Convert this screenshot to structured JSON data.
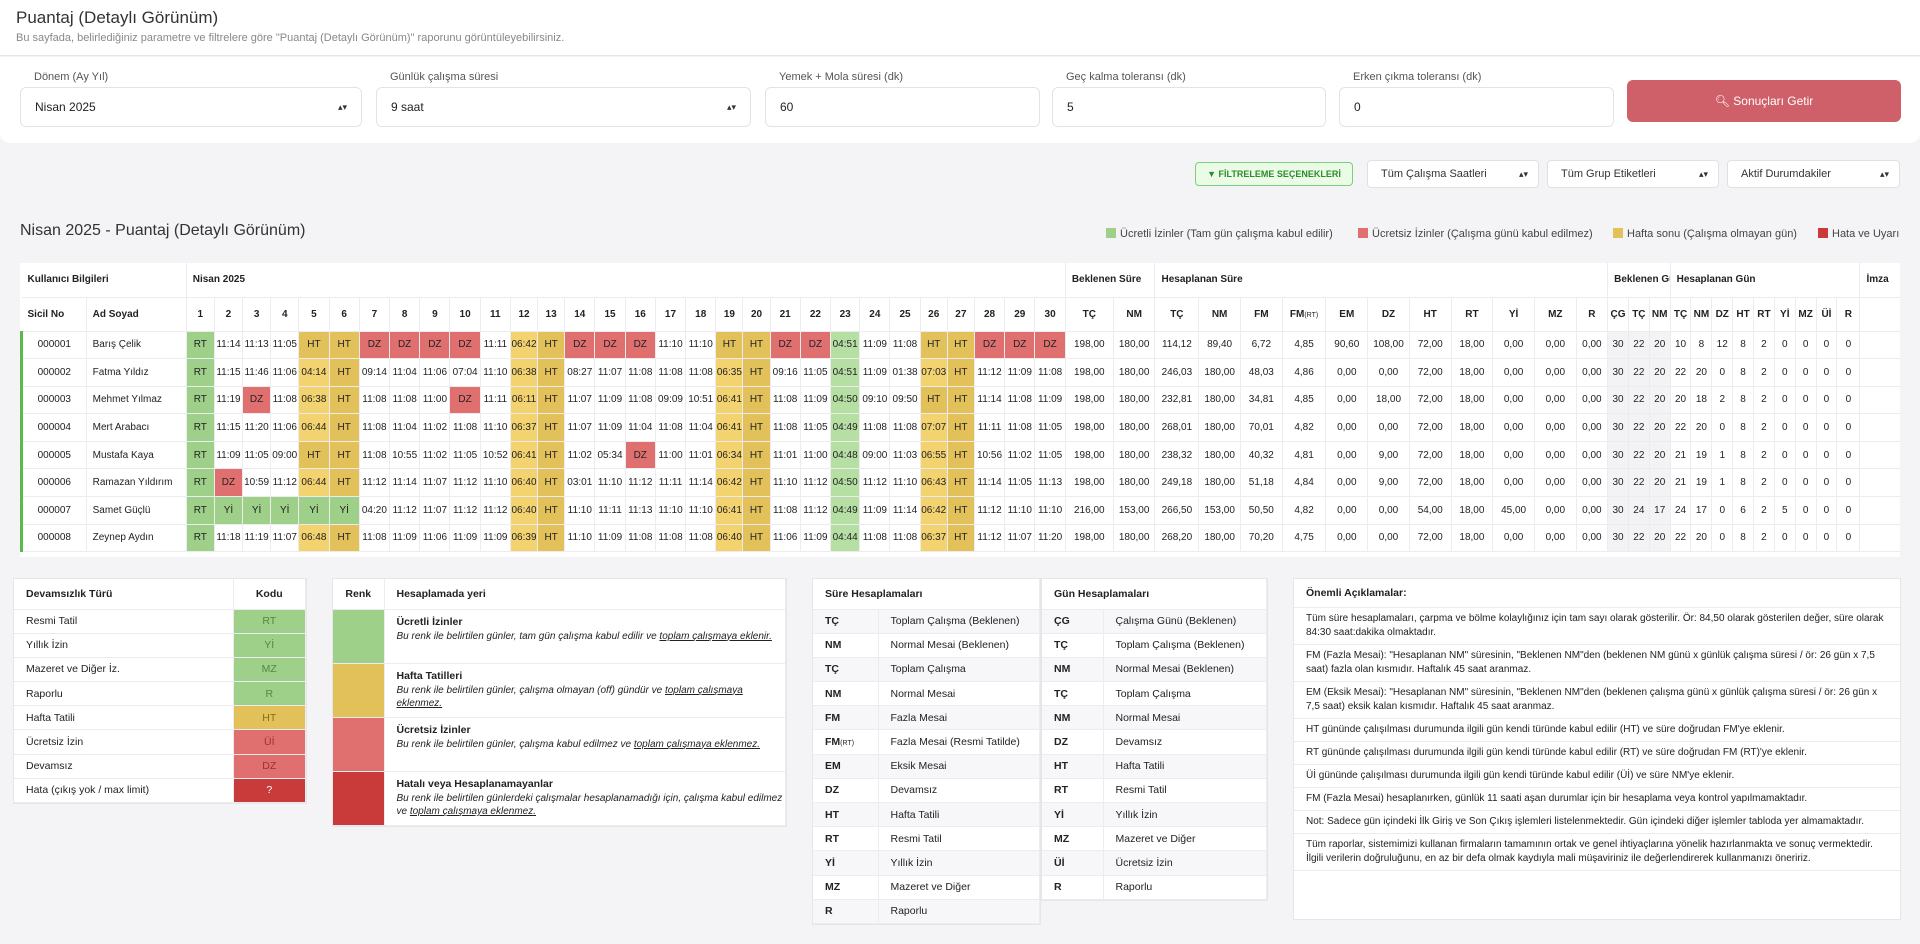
{
  "header": {
    "title": "Puantaj (Detaylı Görünüm)",
    "subtitle": "Bu sayfada, belirlediğiniz parametre ve filtrelere göre \"Puantaj (Detaylı Görünüm)\" raporunu görüntüleyebilirsiniz."
  },
  "params": {
    "donem": {
      "label": "Dönem (Ay Yıl)",
      "value": "Nisan 2025"
    },
    "gunluk": {
      "label": "Günlük çalışma süresi",
      "value": "9 saat"
    },
    "yemek": {
      "label": "Yemek + Mola süresi (dk)",
      "value": "60"
    },
    "gec": {
      "label": "Geç kalma toleransı (dk)",
      "value": "5"
    },
    "erken": {
      "label": "Erken çıkma toleransı (dk)",
      "value": "0"
    },
    "button": "Sonuçları Getir"
  },
  "filters": {
    "button": "FİLTRELEME SEÇENEKLERİ",
    "hours": "Tüm Çalışma Saatleri",
    "groups": "Tüm Grup Etiketleri",
    "status": "Aktif Durumdakiler"
  },
  "section_title": "Nisan 2025 - Puantaj (Detaylı Görünüm)",
  "legend": [
    {
      "label": "Ücretli İzinler (Tam gün çalışma kabul edilir)",
      "color": "#9ed08a"
    },
    {
      "label": "Ücretsiz İzinler (Çalışma günü kabul edilmez)",
      "color": "#e07070"
    },
    {
      "label": "Hafta sonu (Çalışma olmayan gün)",
      "color": "#e2c05a"
    },
    {
      "label": "Hata ve Uyarı",
      "color": "#c93a3a"
    }
  ],
  "table": {
    "group_headers": {
      "user": "Kullanıcı Bilgileri",
      "month": "Nisan 2025",
      "bek_sure": "Beklenen Süre",
      "hes_sure": "Hesaplanan Süre",
      "bek_gun": "Beklenen Gün",
      "hes_gun": "Hesaplanan Gün",
      "imza": "İmza"
    },
    "col_sicil": "Sicil No",
    "col_ad": "Ad Soyad",
    "days": [
      "1",
      "2",
      "3",
      "4",
      "5",
      "6",
      "7",
      "8",
      "9",
      "10",
      "11",
      "12",
      "13",
      "14",
      "15",
      "16",
      "17",
      "18",
      "19",
      "20",
      "21",
      "22",
      "23",
      "24",
      "25",
      "26",
      "27",
      "28",
      "29",
      "30"
    ],
    "sum_headers": [
      "TÇ",
      "NM",
      "TÇ",
      "NM",
      "FM",
      "FM",
      "EM",
      "DZ",
      "HT",
      "RT",
      "Yİ",
      "MZ",
      "R"
    ],
    "fm_rt_sub": "(RT)",
    "gun_headers": [
      "ÇG",
      "TÇ",
      "NM",
      "TÇ",
      "NM",
      "DZ",
      "HT",
      "RT",
      "Yİ",
      "MZ",
      "Üİ",
      "R"
    ],
    "rows": [
      {
        "sicil": "000001",
        "ad": "Barış Çelik",
        "days": [
          "RT",
          "11:14",
          "11:13",
          "11:05",
          "HT",
          "HT",
          "DZ",
          "DZ",
          "DZ",
          "DZ",
          "11:11",
          "06:42",
          "HT",
          "DZ",
          "DZ",
          "DZ",
          "11:10",
          "11:10",
          "HT",
          "HT",
          "DZ",
          "DZ",
          "04:51",
          "11:09",
          "11:08",
          "HT",
          "HT",
          "DZ",
          "DZ",
          "DZ"
        ],
        "sums": [
          "198,00",
          "180,00",
          "114,12",
          "89,40",
          "6,72",
          "4,85",
          "90,60",
          "108,00",
          "72,00",
          "18,00",
          "0,00",
          "0,00",
          "0,00"
        ],
        "gun": [
          "30",
          "22",
          "20",
          "10",
          "8",
          "12",
          "8",
          "2",
          "0",
          "0",
          "0",
          "0"
        ]
      },
      {
        "sicil": "000002",
        "ad": "Fatma Yıldız",
        "days": [
          "RT",
          "11:15",
          "11:46",
          "11:06",
          "04:14",
          "HT",
          "09:14",
          "11:04",
          "11:06",
          "07:04",
          "11:10",
          "06:38",
          "HT",
          "08:27",
          "11:07",
          "11:08",
          "11:08",
          "11:08",
          "06:35",
          "HT",
          "09:16",
          "11:05",
          "04:51",
          "11:09",
          "01:38",
          "07:03",
          "HT",
          "11:12",
          "11:09",
          "11:08"
        ],
        "sums": [
          "198,00",
          "180,00",
          "246,03",
          "180,00",
          "48,03",
          "4,86",
          "0,00",
          "0,00",
          "72,00",
          "18,00",
          "0,00",
          "0,00",
          "0,00"
        ],
        "gun": [
          "30",
          "22",
          "20",
          "22",
          "20",
          "0",
          "8",
          "2",
          "0",
          "0",
          "0",
          "0"
        ]
      },
      {
        "sicil": "000003",
        "ad": "Mehmet Yılmaz",
        "days": [
          "RT",
          "11:19",
          "DZ",
          "11:08",
          "06:38",
          "HT",
          "11:08",
          "11:08",
          "11:00",
          "DZ",
          "11:11",
          "06:11",
          "HT",
          "11:07",
          "11:09",
          "11:08",
          "09:09",
          "10:51",
          "06:41",
          "HT",
          "11:08",
          "11:09",
          "04:50",
          "09:10",
          "09:50",
          "HT",
          "HT",
          "11:14",
          "11:08",
          "11:09"
        ],
        "sums": [
          "198,00",
          "180,00",
          "232,81",
          "180,00",
          "34,81",
          "4,85",
          "0,00",
          "18,00",
          "72,00",
          "18,00",
          "0,00",
          "0,00",
          "0,00"
        ],
        "gun": [
          "30",
          "22",
          "20",
          "20",
          "18",
          "2",
          "8",
          "2",
          "0",
          "0",
          "0",
          "0"
        ]
      },
      {
        "sicil": "000004",
        "ad": "Mert Arabacı",
        "days": [
          "RT",
          "11:15",
          "11:20",
          "11:06",
          "06:44",
          "HT",
          "11:08",
          "11:04",
          "11:02",
          "11:08",
          "11:10",
          "06:37",
          "HT",
          "11:07",
          "11:09",
          "11:04",
          "11:08",
          "11:04",
          "06:41",
          "HT",
          "11:08",
          "11:05",
          "04:49",
          "11:08",
          "11:08",
          "07:07",
          "HT",
          "11:11",
          "11:08",
          "11:05"
        ],
        "sums": [
          "198,00",
          "180,00",
          "268,01",
          "180,00",
          "70,01",
          "4,82",
          "0,00",
          "0,00",
          "72,00",
          "18,00",
          "0,00",
          "0,00",
          "0,00"
        ],
        "gun": [
          "30",
          "22",
          "20",
          "22",
          "20",
          "0",
          "8",
          "2",
          "0",
          "0",
          "0",
          "0"
        ]
      },
      {
        "sicil": "000005",
        "ad": "Mustafa Kaya",
        "days": [
          "RT",
          "11:09",
          "11:05",
          "09:00",
          "HT",
          "HT",
          "11:08",
          "10:55",
          "11:02",
          "11:05",
          "10:52",
          "06:41",
          "HT",
          "11:02",
          "05:34",
          "DZ",
          "11:00",
          "11:01",
          "06:34",
          "HT",
          "11:01",
          "11:00",
          "04:48",
          "09:00",
          "11:03",
          "06:55",
          "HT",
          "10:56",
          "11:02",
          "11:05"
        ],
        "sums": [
          "198,00",
          "180,00",
          "238,32",
          "180,00",
          "40,32",
          "4,81",
          "0,00",
          "9,00",
          "72,00",
          "18,00",
          "0,00",
          "0,00",
          "0,00"
        ],
        "gun": [
          "30",
          "22",
          "20",
          "21",
          "19",
          "1",
          "8",
          "2",
          "0",
          "0",
          "0",
          "0"
        ]
      },
      {
        "sicil": "000006",
        "ad": "Ramazan Yıldırım",
        "days": [
          "RT",
          "DZ",
          "10:59",
          "11:12",
          "06:44",
          "HT",
          "11:12",
          "11:14",
          "11:07",
          "11:12",
          "11:10",
          "06:40",
          "HT",
          "03:01",
          "11:10",
          "11:12",
          "11:11",
          "11:14",
          "06:42",
          "HT",
          "11:10",
          "11:12",
          "04:50",
          "11:12",
          "11:10",
          "06:43",
          "HT",
          "11:14",
          "11:05",
          "11:13"
        ],
        "sums": [
          "198,00",
          "180,00",
          "249,18",
          "180,00",
          "51,18",
          "4,84",
          "0,00",
          "9,00",
          "72,00",
          "18,00",
          "0,00",
          "0,00",
          "0,00"
        ],
        "gun": [
          "30",
          "22",
          "20",
          "21",
          "19",
          "1",
          "8",
          "2",
          "0",
          "0",
          "0",
          "0"
        ]
      },
      {
        "sicil": "000007",
        "ad": "Samet Güçlü",
        "days": [
          "RT",
          "Yİ",
          "Yİ",
          "Yİ",
          "Yİ",
          "Yİ",
          "04:20",
          "11:12",
          "11:07",
          "11:12",
          "11:12",
          "06:40",
          "HT",
          "11:10",
          "11:11",
          "11:13",
          "11:10",
          "11:10",
          "06:41",
          "HT",
          "11:08",
          "11:12",
          "04:49",
          "11:09",
          "11:14",
          "06:42",
          "HT",
          "11:12",
          "11:10",
          "11:10"
        ],
        "sums": [
          "216,00",
          "153,00",
          "266,50",
          "153,00",
          "50,50",
          "4,82",
          "0,00",
          "0,00",
          "54,00",
          "18,00",
          "45,00",
          "0,00",
          "0,00"
        ],
        "gun": [
          "30",
          "24",
          "17",
          "24",
          "17",
          "0",
          "6",
          "2",
          "5",
          "0",
          "0",
          "0"
        ]
      },
      {
        "sicil": "000008",
        "ad": "Zeynep Aydın",
        "days": [
          "RT",
          "11:18",
          "11:19",
          "11:07",
          "06:48",
          "HT",
          "11:08",
          "11:09",
          "11:06",
          "11:09",
          "11:09",
          "06:39",
          "HT",
          "11:10",
          "11:09",
          "11:08",
          "11:08",
          "11:08",
          "06:40",
          "HT",
          "11:06",
          "11:09",
          "04:44",
          "11:08",
          "11:08",
          "06:37",
          "HT",
          "11:12",
          "11:07",
          "11:20"
        ],
        "sums": [
          "198,00",
          "180,00",
          "268,20",
          "180,00",
          "70,20",
          "4,75",
          "0,00",
          "0,00",
          "72,00",
          "18,00",
          "0,00",
          "0,00",
          "0,00"
        ],
        "gun": [
          "30",
          "22",
          "20",
          "22",
          "20",
          "0",
          "8",
          "2",
          "0",
          "0",
          "0",
          "0"
        ]
      }
    ]
  },
  "devam": {
    "h1": "Devamsızlık Türü",
    "h2": "Kodu",
    "rows": [
      {
        "ad": "Resmi Tatil",
        "kod": "RT",
        "cls": "c-g"
      },
      {
        "ad": "Yıllık İzin",
        "kod": "Yİ",
        "cls": "c-g"
      },
      {
        "ad": "Mazeret ve Diğer İz.",
        "kod": "MZ",
        "cls": "c-g"
      },
      {
        "ad": "Raporlu",
        "kod": "R",
        "cls": "c-g"
      },
      {
        "ad": "Hafta Tatili",
        "kod": "HT",
        "cls": "c-y2"
      },
      {
        "ad": "Ücretsiz İzin",
        "kod": "Üİ",
        "cls": "c-r"
      },
      {
        "ad": "Devamsız",
        "kod": "DZ",
        "cls": "c-r"
      },
      {
        "ad": "Hata (çıkış yok / max limit)",
        "kod": "?",
        "cls": "c-hr"
      }
    ]
  },
  "renk": {
    "h1": "Renk",
    "h2": "Hesaplamada yeri",
    "rows": [
      {
        "color": "#9ed08a",
        "title": "Ücretli İzinler",
        "pre": "Bu renk ile belirtilen günler, tam gün çalışma kabul edilir ve ",
        "link": "toplam çalışmaya eklenir."
      },
      {
        "color": "#e2c05a",
        "title": "Hafta Tatilleri",
        "pre": "Bu renk ile belirtilen günler, çalışma olmayan (off) gündür ve ",
        "link": "toplam çalışmaya eklenmez."
      },
      {
        "color": "#e07070",
        "title": "Ücretsiz İzinler",
        "pre": "Bu renk ile belirtilen günler, çalışma kabul edilmez ve ",
        "link": "toplam çalışmaya eklenmez."
      },
      {
        "color": "#c93a3a",
        "title": "Hatalı veya Hesaplanamayanlar",
        "pre": "Bu renk ile belirtilen günlerdeki çalışmalar hesaplanamadığı için, çalışma kabul edilmez ve ",
        "link": "toplam çalışmaya eklenmez."
      }
    ]
  },
  "sure": {
    "h": "Süre Hesaplamaları",
    "rows": [
      {
        "k": "TÇ",
        "v": "Toplam Çalışma (Beklenen)"
      },
      {
        "k": "NM",
        "v": "Normal Mesai (Beklenen)"
      },
      {
        "k": "TÇ",
        "v": "Toplam Çalışma"
      },
      {
        "k": "NM",
        "v": "Normal Mesai"
      },
      {
        "k": "FM",
        "v": "Fazla Mesai"
      },
      {
        "k": "FM",
        "sub": "(RT)",
        "v": "Fazla Mesai (Resmi Tatilde)"
      },
      {
        "k": "EM",
        "v": "Eksik Mesai"
      },
      {
        "k": "DZ",
        "v": "Devamsız"
      },
      {
        "k": "HT",
        "v": "Hafta Tatili"
      },
      {
        "k": "RT",
        "v": "Resmi Tatil"
      },
      {
        "k": "Yİ",
        "v": "Yıllık İzin"
      },
      {
        "k": "MZ",
        "v": "Mazeret ve Diğer"
      },
      {
        "k": "R",
        "v": "Raporlu"
      }
    ]
  },
  "gun": {
    "h": "Gün Hesaplamaları",
    "rows": [
      {
        "k": "ÇG",
        "v": "Çalışma Günü (Beklenen)"
      },
      {
        "k": "TÇ",
        "v": "Toplam Çalışma (Beklenen)"
      },
      {
        "k": "NM",
        "v": "Normal Mesai (Beklenen)"
      },
      {
        "k": "TÇ",
        "v": "Toplam Çalışma"
      },
      {
        "k": "NM",
        "v": "Normal Mesai"
      },
      {
        "k": "DZ",
        "v": "Devamsız"
      },
      {
        "k": "HT",
        "v": "Hafta Tatili"
      },
      {
        "k": "RT",
        "v": "Resmi Tatil"
      },
      {
        "k": "Yİ",
        "v": "Yıllık İzin"
      },
      {
        "k": "MZ",
        "v": "Mazeret ve Diğer"
      },
      {
        "k": "Üİ",
        "v": "Ücretsiz İzin"
      },
      {
        "k": "R",
        "v": "Raporlu"
      }
    ]
  },
  "notes": {
    "title": "Önemli Açıklamalar:",
    "paras": [
      "Tüm süre hesaplamaları, çarpma ve bölme kolaylığınız için tam sayı olarak gösterilir. Ör: 84,50 olarak gösterilen değer, süre olarak 84:30 saat:dakika olmaktadır.",
      "FM (Fazla Mesai): \"Hesaplanan NM\" süresinin, \"Beklenen NM\"den (beklenen NM günü x günlük çalışma süresi / ör: 26 gün x 7,5 saat) fazla olan kısmıdır. Haftalık 45 saat aranmaz.",
      "EM (Eksik Mesai): \"Hesaplanan NM\" süresinin, \"Beklenen NM\"den (beklenen çalışma günü x günlük çalışma süresi / ör: 26 gün x 7,5 saat) eksik kalan kısmıdır. Haftalık 45 saat aranmaz.",
      "HT gününde çalışılması durumunda ilgili gün kendi türünde kabul edilir (HT) ve süre doğrudan FM'ye eklenir.",
      "RT gününde çalışılması durumunda ilgili gün kendi türünde kabul edilir (RT) ve süre doğrudan FM (RT)'ye eklenir.",
      "Üİ gününde çalışılması durumunda ilgili gün kendi türünde kabul edilir (Üİ) ve süre NM'ye eklenir.",
      "FM (Fazla Mesai) hesaplanırken, günlük 11 saati aşan durumlar için bir hesaplama veya kontrol yapılmamaktadır.",
      "Not: Sadece gün içindeki İlk Giriş ve Son Çıkış işlemleri listelenmektedir. Gün içindeki diğer işlemler tabloda yer almamaktadır.",
      "Tüm raporlar, sistemimizi kullanan firmaların tamamının ortak ve genel ihtiyaçlarına yönelik hazırlanmakta ve sonuç vermektedir. İlgili verilerin doğruluğunu, en az bir defa olmak kaydıyla mali müşaviriniz ile değerlendirerek kullanmanızı öneririz."
    ]
  }
}
